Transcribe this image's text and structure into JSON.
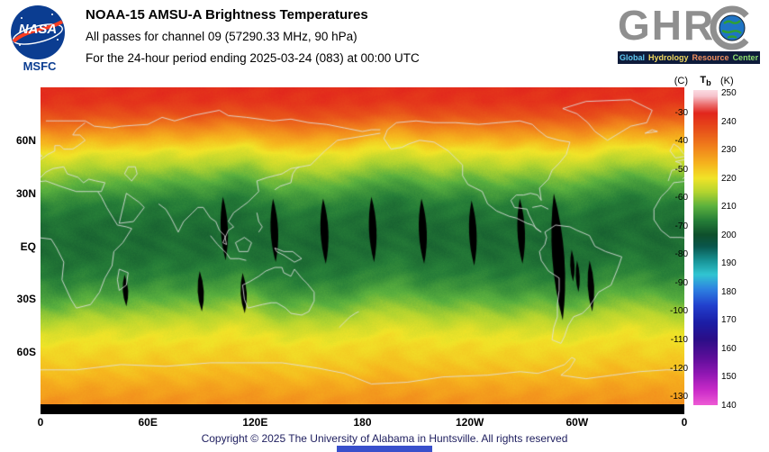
{
  "header": {
    "nasa": {
      "agency": "NASA",
      "center": "MSFC"
    },
    "title": "NOAA-15 AMSU-A Brightness Temperatures",
    "subtitle1": "All passes for channel 09 (57290.33 MHz, 90 hPa)",
    "subtitle2": "For the 24-hour period ending 2025-03-24 (083) at 00:00 UTC",
    "ghrc": {
      "acronym_prefix": "GHR",
      "acronym_full": "GHRC",
      "tagline": [
        {
          "text": "Global",
          "color": "#5fc8f0"
        },
        {
          "text": "Hydrology",
          "color": "#f0d85f"
        },
        {
          "text": "Resource",
          "color": "#f08f5f"
        },
        {
          "text": "Center",
          "color": "#8fe06f"
        }
      ]
    }
  },
  "map": {
    "y_ticks": [
      {
        "label": "60N",
        "lat": 60
      },
      {
        "label": "30N",
        "lat": 30
      },
      {
        "label": "EQ",
        "lat": 0
      },
      {
        "label": "30S",
        "lat": -30
      },
      {
        "label": "60S",
        "lat": -60
      }
    ],
    "x_ticks": [
      {
        "label": "0",
        "lon": 0
      },
      {
        "label": "60E",
        "lon": 60
      },
      {
        "label": "120E",
        "lon": 120
      },
      {
        "label": "180",
        "lon": 180
      },
      {
        "label": "120W",
        "lon": 240
      },
      {
        "label": "60W",
        "lon": 300
      },
      {
        "label": "0",
        "lon": 360
      }
    ]
  },
  "colorbar": {
    "unit_left": "(C)",
    "tb_main": "T",
    "tb_sub": "b",
    "unit_right": "(K)",
    "c_ticks": [
      -30,
      -40,
      -50,
      -60,
      -70,
      -80,
      -90,
      -100,
      -110,
      -120,
      -130
    ],
    "k_ticks": [
      250,
      240,
      230,
      220,
      210,
      200,
      190,
      180,
      170,
      160,
      150,
      140
    ]
  },
  "footer": {
    "copyright": "Copyright © 2025 The University of Alabama in Huntsville. All rights reserved"
  },
  "colors": {
    "nasa_blue": "#0b3d91",
    "nasa_red": "#fc3d21",
    "footer_text": "#202060",
    "bottom_bar": "#3950cc",
    "tagline_bg": "#0e1b3a"
  },
  "chart_data": {
    "type": "heatmap",
    "title": "NOAA-15 AMSU-A Brightness Temperatures",
    "subtitle": "All passes for channel 09 (57290.33 MHz, 90 hPa)",
    "period": "24-hour period ending 2025-03-24 (083) at 00:00 UTC",
    "satellite": "NOAA-15",
    "instrument": "AMSU-A",
    "channel": "09",
    "frequency_mhz": 57290.33,
    "pressure_level_hpa": 90,
    "projection": "equirectangular, longitude 0 to 360E (0 at left, 180 at center)",
    "lat_range": [
      -90,
      90
    ],
    "lon_range_east": [
      0,
      360
    ],
    "xlabel_ticks": [
      "0",
      "60E",
      "120E",
      "180",
      "120W",
      "60W",
      "0"
    ],
    "ylabel_ticks": [
      "60N",
      "30N",
      "EQ",
      "30S",
      "60S"
    ],
    "legend_position": "right",
    "colorbar": {
      "title": "Tb",
      "units": [
        "C",
        "K"
      ],
      "k_range": [
        140,
        251
      ],
      "c_ticks": [
        -30,
        -40,
        -50,
        -60,
        -70,
        -80,
        -90,
        -100,
        -110,
        -120,
        -130
      ],
      "k_ticks": [
        250,
        240,
        230,
        220,
        210,
        200,
        190,
        180,
        170,
        160,
        150,
        140
      ],
      "stops_k_rgb": [
        [
          253,
          [
            255,
            242,
            246
          ]
        ],
        [
          249,
          [
            247,
            195,
            205
          ]
        ],
        [
          246,
          [
            236,
            110,
            110
          ]
        ],
        [
          243,
          [
            226,
            38,
            28
          ]
        ],
        [
          237,
          [
            232,
            82,
            26
          ]
        ],
        [
          231,
          [
            241,
            130,
            28
          ]
        ],
        [
          225,
          [
            246,
            182,
            30
          ]
        ],
        [
          220,
          [
            241,
            228,
            40
          ]
        ],
        [
          215,
          [
            178,
            212,
            48
          ]
        ],
        [
          210,
          [
            90,
            176,
            62
          ]
        ],
        [
          205,
          [
            38,
            126,
            56
          ]
        ],
        [
          200,
          [
            15,
            80,
            44
          ]
        ],
        [
          196,
          [
            10,
            86,
            76
          ]
        ],
        [
          191,
          [
            24,
            146,
            148
          ]
        ],
        [
          186,
          [
            50,
            198,
            210
          ]
        ],
        [
          181,
          [
            46,
            132,
            226
          ]
        ],
        [
          175,
          [
            34,
            64,
            206
          ]
        ],
        [
          169,
          [
            28,
            30,
            166
          ]
        ],
        [
          163,
          [
            44,
            14,
            136
          ]
        ],
        [
          157,
          [
            90,
            14,
            153
          ]
        ],
        [
          151,
          [
            144,
            24,
            179
          ]
        ],
        [
          145,
          [
            203,
            44,
            201
          ]
        ],
        [
          140,
          [
            238,
            90,
            213
          ]
        ]
      ]
    },
    "zonal_mean_profile_k": [
      [
        90,
        242
      ],
      [
        82,
        241
      ],
      [
        74,
        237
      ],
      [
        66,
        230
      ],
      [
        60,
        225
      ],
      [
        54,
        220
      ],
      [
        47,
        216
      ],
      [
        40,
        212
      ],
      [
        32,
        208
      ],
      [
        24,
        205
      ],
      [
        15,
        203.5
      ],
      [
        5,
        203
      ],
      [
        -5,
        203.5
      ],
      [
        -15,
        205
      ],
      [
        -24,
        207.5
      ],
      [
        -32,
        211
      ],
      [
        -40,
        215
      ],
      [
        -48,
        218.5
      ],
      [
        -56,
        221
      ],
      [
        -64,
        222.5
      ],
      [
        -72,
        224.5
      ],
      [
        -80,
        227
      ],
      [
        -90,
        229.5
      ]
    ],
    "band_wave_amplitude_deg": 3.5,
    "data_gaps_lon_lattop_latbot_halfw_tilt": [
      [
        102,
        28,
        -8,
        2.0,
        1.5
      ],
      [
        130,
        27,
        -9,
        2.1,
        1.5
      ],
      [
        158,
        27,
        -10,
        2.2,
        1.5
      ],
      [
        185,
        28,
        -9,
        2.1,
        1.5
      ],
      [
        213,
        27,
        -10,
        2.2,
        1.5
      ],
      [
        241,
        26,
        -11,
        2.1,
        1.5
      ],
      [
        268,
        27,
        -10,
        2.1,
        1.5
      ],
      [
        47,
        -16,
        -34,
        1.5,
        1.0
      ],
      [
        89,
        -14,
        -37,
        1.7,
        1.2
      ],
      [
        113,
        -15,
        -38,
        1.7,
        1.2
      ],
      [
        287,
        30,
        -42,
        3.4,
        5.0
      ],
      [
        297,
        -2,
        -20,
        1.2,
        0.8
      ],
      [
        300,
        -8,
        -26,
        1.1,
        0.8
      ],
      [
        307,
        -8,
        -37,
        1.8,
        1.5
      ]
    ]
  }
}
